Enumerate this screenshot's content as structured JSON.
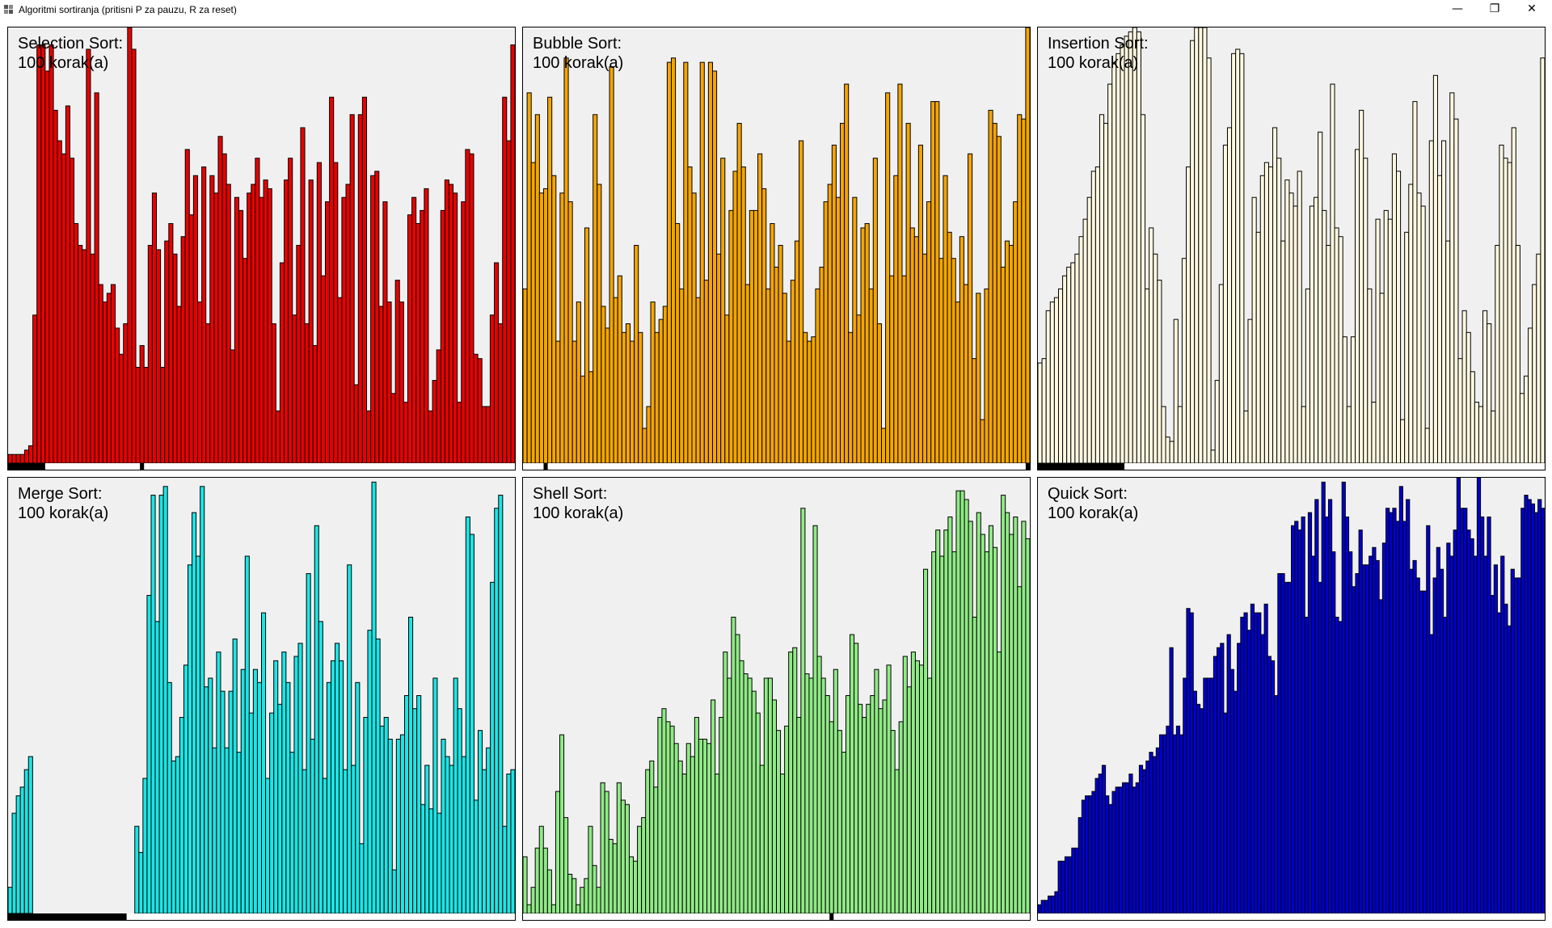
{
  "window": {
    "title": "Algoritmi sortiranja (pritisni P za pauzu, R za reset)",
    "buttons": [
      {
        "name": "minimize-button",
        "icon": "minimize-icon",
        "glyph": "—"
      },
      {
        "name": "restore-button",
        "icon": "restore-icon",
        "glyph": "❐"
      },
      {
        "name": "close-button",
        "icon": "close-icon",
        "glyph": "✕"
      }
    ]
  },
  "step_label": "100 korak(a)",
  "panels": [
    {
      "name": "selection-sort",
      "title": "Selection Sort:",
      "steps": "100 korak(a)",
      "color": "#e90000",
      "values": [
        2,
        2,
        2,
        2,
        3,
        4,
        34,
        96,
        96,
        90,
        96,
        81,
        74,
        71,
        82,
        70,
        55,
        50,
        49,
        95,
        48,
        85,
        41,
        37,
        39,
        41,
        31,
        25,
        32,
        100,
        95,
        22,
        27,
        22,
        50,
        62,
        49,
        22,
        51,
        55,
        48,
        36,
        52,
        72,
        57,
        66,
        37,
        68,
        32,
        66,
        62,
        75,
        71,
        64,
        26,
        61,
        58,
        47,
        62,
        64,
        70,
        61,
        65,
        63,
        32,
        12,
        46,
        65,
        70,
        34,
        50,
        77,
        32,
        65,
        27,
        69,
        43,
        60,
        84,
        69,
        38,
        61,
        64,
        80,
        18,
        80,
        84,
        12,
        66,
        67,
        36,
        60,
        37,
        16,
        42,
        37,
        14,
        57,
        61,
        55,
        58,
        63,
        12,
        19,
        26,
        58,
        65,
        64,
        62,
        14,
        60,
        72,
        71,
        25,
        24,
        13,
        13,
        34,
        46,
        32,
        84,
        74,
        96
      ],
      "markers": [
        {
          "from": 0,
          "to": 9
        },
        {
          "from": 32,
          "to": 33
        }
      ]
    },
    {
      "name": "bubble-sort",
      "title": "Bubble Sort:",
      "steps": "100 korak(a)",
      "color": "#f5a500",
      "values": [
        40,
        85,
        69,
        80,
        62,
        63,
        84,
        66,
        28,
        62,
        93,
        60,
        28,
        37,
        20,
        54,
        21,
        80,
        64,
        36,
        31,
        91,
        38,
        43,
        30,
        32,
        28,
        50,
        30,
        8,
        13,
        37,
        30,
        33,
        36,
        92,
        93,
        55,
        40,
        92,
        68,
        62,
        38,
        92,
        42,
        92,
        90,
        48,
        70,
        34,
        58,
        67,
        78,
        68,
        41,
        58,
        58,
        71,
        63,
        40,
        55,
        45,
        50,
        39,
        28,
        42,
        51,
        74,
        30,
        28,
        29,
        40,
        45,
        60,
        64,
        73,
        61,
        78,
        87,
        30,
        61,
        34,
        54,
        55,
        40,
        70,
        32,
        8,
        85,
        43,
        66,
        87,
        43,
        78,
        54,
        52,
        73,
        48,
        60,
        83,
        83,
        47,
        66,
        53,
        47,
        37,
        52,
        41,
        71,
        24,
        39,
        10,
        40,
        81,
        78,
        75,
        45,
        51,
        50,
        60,
        80,
        79,
        100
      ],
      "markers": [
        {
          "from": 5,
          "to": 6
        },
        {
          "from": 122,
          "to": 124
        }
      ]
    },
    {
      "name": "insertion-sort",
      "title": "Insertion Sort:",
      "steps": "100 korak(a)",
      "color": "#fff8e1",
      "values": [
        23,
        24,
        35,
        37,
        38,
        40,
        43,
        45,
        46,
        48,
        52,
        56,
        61,
        67,
        68,
        80,
        78,
        87,
        92,
        94,
        96,
        98,
        99,
        100,
        99,
        80,
        40,
        54,
        48,
        42,
        13,
        6,
        5,
        33,
        13,
        47,
        68,
        97,
        100,
        100,
        100,
        93,
        3,
        19,
        41,
        73,
        77,
        94,
        95,
        94,
        12,
        33,
        61,
        53,
        66,
        69,
        68,
        77,
        70,
        51,
        65,
        62,
        59,
        67,
        13,
        40,
        59,
        61,
        76,
        58,
        50,
        87,
        54,
        52,
        29,
        13,
        29,
        72,
        81,
        70,
        40,
        14,
        56,
        39,
        58,
        56,
        71,
        67,
        10,
        53,
        64,
        83,
        62,
        59,
        8,
        74,
        89,
        66,
        74,
        51,
        85,
        79,
        24,
        35,
        30,
        21,
        14,
        13,
        35,
        32,
        12,
        50,
        73,
        70,
        69,
        77,
        50,
        16,
        20,
        31,
        41,
        48,
        93
      ],
      "markers": [
        {
          "from": 0,
          "to": 21
        }
      ]
    },
    {
      "name": "merge-sort",
      "title": "Merge Sort:",
      "steps": "100 korak(a)",
      "color": "#1ce5e5",
      "values": [
        6,
        23,
        27,
        29,
        33,
        36,
        0,
        0,
        0,
        0,
        0,
        0,
        0,
        0,
        0,
        0,
        0,
        0,
        0,
        0,
        0,
        0,
        0,
        0,
        0,
        0,
        0,
        0,
        0,
        0,
        0,
        20,
        14,
        31,
        73,
        96,
        67,
        96,
        98,
        53,
        35,
        36,
        45,
        57,
        80,
        92,
        82,
        98,
        52,
        54,
        38,
        60,
        51,
        38,
        51,
        63,
        37,
        56,
        82,
        46,
        56,
        53,
        69,
        31,
        46,
        58,
        48,
        60,
        53,
        37,
        59,
        62,
        33,
        78,
        40,
        89,
        67,
        31,
        53,
        58,
        62,
        58,
        33,
        80,
        34,
        53,
        16,
        45,
        65,
        99,
        63,
        43,
        45,
        40,
        10,
        40,
        41,
        50,
        68,
        47,
        50,
        25,
        34,
        24,
        54,
        23,
        40,
        36,
        34,
        54,
        47,
        36,
        91,
        87,
        26,
        42,
        33,
        38,
        76,
        93,
        96,
        20,
        32,
        33
      ],
      "markers": [
        {
          "from": 0,
          "to": 29
        }
      ]
    },
    {
      "name": "shell-sort",
      "title": "Shell Sort:",
      "steps": "100 korak(a)",
      "color": "#90ea86",
      "values": [
        13,
        2,
        6,
        15,
        20,
        15,
        10,
        2,
        28,
        41,
        22,
        9,
        8,
        2,
        6,
        8,
        20,
        11,
        6,
        30,
        28,
        17,
        16,
        30,
        26,
        25,
        13,
        12,
        20,
        22,
        33,
        35,
        29,
        45,
        47,
        44,
        43,
        39,
        35,
        32,
        39,
        36,
        45,
        40,
        40,
        39,
        49,
        32,
        45,
        60,
        54,
        68,
        64,
        58,
        55,
        54,
        51,
        46,
        34,
        54,
        54,
        49,
        42,
        32,
        43,
        60,
        61,
        45,
        93,
        55,
        54,
        89,
        59,
        54,
        50,
        44,
        56,
        42,
        37,
        50,
        64,
        62,
        48,
        45,
        48,
        50,
        56,
        47,
        49,
        57,
        42,
        33,
        44,
        59,
        52,
        60,
        58,
        57,
        79,
        54,
        83,
        88,
        82,
        88,
        91,
        83,
        97,
        97,
        95,
        90,
        68,
        92,
        87,
        83,
        89,
        84,
        60,
        96,
        92,
        87,
        91,
        75,
        90,
        86
      ],
      "markers": [
        {
          "from": 75,
          "to": 76
        }
      ]
    },
    {
      "name": "quick-sort",
      "title": "Quick Sort:",
      "steps": "100 korak(a)",
      "color": "#0000d2",
      "values": [
        2,
        3,
        3,
        4,
        4,
        5,
        12,
        12,
        13,
        13,
        15,
        15,
        22,
        26,
        27,
        27,
        28,
        31,
        32,
        34,
        27,
        25,
        28,
        29,
        29,
        30,
        30,
        32,
        29,
        30,
        34,
        33,
        35,
        37,
        36,
        38,
        41,
        41,
        43,
        61,
        41,
        43,
        41,
        54,
        70,
        69,
        51,
        48,
        47,
        54,
        54,
        54,
        59,
        61,
        62,
        46,
        64,
        56,
        51,
        62,
        68,
        69,
        65,
        71,
        69,
        69,
        64,
        71,
        59,
        58,
        50,
        78,
        78,
        76,
        76,
        89,
        90,
        88,
        91,
        68,
        92,
        82,
        95,
        76,
        99,
        91,
        95,
        83,
        68,
        67,
        99,
        91,
        83,
        75,
        78,
        88,
        80,
        80,
        82,
        84,
        81,
        72,
        85,
        93,
        92,
        93,
        90,
        98,
        90,
        95,
        79,
        81,
        77,
        74,
        74,
        89,
        64,
        77,
        84,
        79,
        68,
        85,
        82,
        88,
        100,
        93,
        93,
        88,
        86,
        82,
        100,
        91,
        82,
        91,
        73,
        80,
        69,
        82,
        71,
        66,
        79,
        77,
        77,
        93,
        96,
        95,
        94,
        92,
        95,
        93
      ]
    }
  ]
}
